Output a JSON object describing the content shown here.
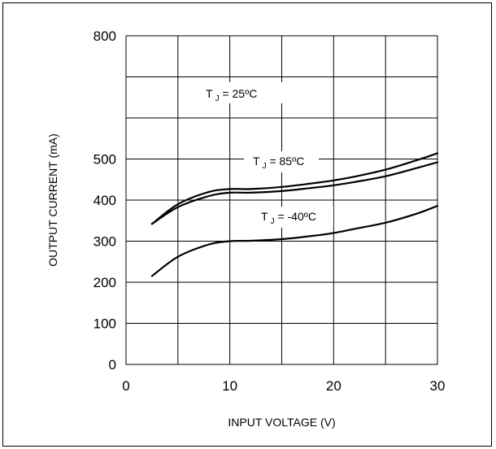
{
  "chart_data": {
    "type": "line",
    "xlabel": "INPUT VOLTAGE (V)",
    "ylabel": "OUTPUT CURRENT (mA)",
    "xlim": [
      0,
      30
    ],
    "ylim": [
      0,
      800
    ],
    "x_ticks": [
      "0",
      "10",
      "20",
      "30"
    ],
    "y_ticks": [
      "0",
      "100",
      "200",
      "300",
      "400",
      "500",
      "800"
    ],
    "grid": true,
    "series": [
      {
        "name": "T_J = 25ºC",
        "label_parts": [
          "T",
          "J",
          " = 25ºC"
        ],
        "points": [
          [
            2.5,
            342
          ],
          [
            5,
            390
          ],
          [
            8,
            420
          ],
          [
            10,
            427
          ],
          [
            12,
            427
          ],
          [
            15,
            432
          ],
          [
            18,
            441
          ],
          [
            20,
            448
          ],
          [
            22,
            457
          ],
          [
            25,
            474
          ],
          [
            28,
            497
          ],
          [
            30,
            514
          ]
        ]
      },
      {
        "name": "T_J = 85ºC",
        "label_parts": [
          "T",
          "J",
          " = 85ºC"
        ],
        "points": [
          [
            2.5,
            342
          ],
          [
            5,
            383
          ],
          [
            8,
            410
          ],
          [
            10,
            418
          ],
          [
            12,
            418
          ],
          [
            15,
            422
          ],
          [
            18,
            430
          ],
          [
            20,
            436
          ],
          [
            22,
            444
          ],
          [
            25,
            458
          ],
          [
            28,
            478
          ],
          [
            30,
            492
          ]
        ]
      },
      {
        "name": "T_J = -40ºC",
        "label_parts": [
          "T",
          "J",
          " = -40ºC"
        ],
        "points": [
          [
            2.5,
            215
          ],
          [
            5,
            262
          ],
          [
            8,
            292
          ],
          [
            10,
            300
          ],
          [
            12,
            301
          ],
          [
            15,
            305
          ],
          [
            18,
            313
          ],
          [
            20,
            320
          ],
          [
            22,
            330
          ],
          [
            25,
            345
          ],
          [
            28,
            367
          ],
          [
            30,
            386
          ]
        ]
      }
    ]
  }
}
